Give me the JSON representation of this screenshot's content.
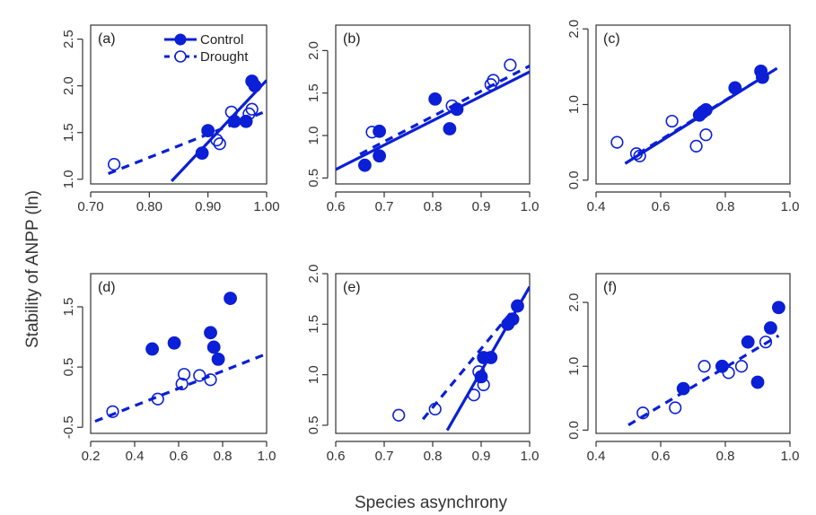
{
  "figure": {
    "ylabel": "Stability of ANPP (ln)",
    "xlabel": "Species asynchrony",
    "colors": {
      "accent": "#0a1fd6"
    }
  },
  "chart_data": [
    {
      "type": "scatter",
      "panel": "(a)",
      "xlim": [
        0.7,
        1.0
      ],
      "ylim": [
        0.95,
        2.65
      ],
      "xticks": [
        "0.70",
        "0.80",
        "0.90",
        "1.00"
      ],
      "xtick_values": [
        0.7,
        0.8,
        0.9,
        1.0
      ],
      "yticks": [
        "1.0",
        "1.5",
        "2.0",
        "2.5"
      ],
      "ytick_values": [
        1.0,
        1.5,
        2.0,
        2.5
      ],
      "legend": {
        "position": "top",
        "entries": [
          "Control",
          "Drought"
        ]
      },
      "series": [
        {
          "name": "Control",
          "marker": "filled",
          "line": "solid",
          "points": [
            [
              0.89,
              1.28
            ],
            [
              0.9,
              1.52
            ],
            [
              0.945,
              1.62
            ],
            [
              0.965,
              1.62
            ],
            [
              0.975,
              2.05
            ],
            [
              0.98,
              2.0
            ]
          ],
          "fit": [
            [
              0.838,
              0.98
            ],
            [
              1.0,
              2.06
            ]
          ]
        },
        {
          "name": "Drought",
          "marker": "open",
          "line": "dashed",
          "points": [
            [
              0.74,
              1.16
            ],
            [
              0.915,
              1.42
            ],
            [
              0.92,
              1.38
            ],
            [
              0.94,
              1.72
            ],
            [
              0.97,
              1.7
            ],
            [
              0.975,
              1.75
            ]
          ],
          "fit": [
            [
              0.73,
              1.06
            ],
            [
              1.0,
              1.73
            ]
          ]
        }
      ]
    },
    {
      "type": "scatter",
      "panel": "(b)",
      "xlim": [
        0.6,
        1.0
      ],
      "ylim": [
        0.43,
        2.3
      ],
      "xticks": [
        "0.6",
        "0.7",
        "0.8",
        "0.9",
        "1.0"
      ],
      "xtick_values": [
        0.6,
        0.7,
        0.8,
        0.9,
        1.0
      ],
      "yticks": [
        "0.5",
        "1.0",
        "1.5",
        "2.0"
      ],
      "ytick_values": [
        0.5,
        1.0,
        1.5,
        2.0
      ],
      "series": [
        {
          "name": "Control",
          "marker": "filled",
          "line": "solid",
          "points": [
            [
              0.66,
              0.65
            ],
            [
              0.69,
              0.76
            ],
            [
              0.69,
              1.05
            ],
            [
              0.805,
              1.43
            ],
            [
              0.835,
              1.08
            ],
            [
              0.85,
              1.31
            ]
          ],
          "fit": [
            [
              0.6,
              0.6
            ],
            [
              1.0,
              1.75
            ]
          ]
        },
        {
          "name": "Drought",
          "marker": "open",
          "line": "dashed",
          "points": [
            [
              0.675,
              1.04
            ],
            [
              0.84,
              1.35
            ],
            [
              0.92,
              1.6
            ],
            [
              0.925,
              1.65
            ],
            [
              0.96,
              1.83
            ]
          ],
          "fit": [
            [
              0.65,
              0.78
            ],
            [
              1.0,
              1.82
            ]
          ]
        }
      ]
    },
    {
      "type": "scatter",
      "panel": "(c)",
      "xlim": [
        0.4,
        1.0
      ],
      "ylim": [
        -0.05,
        2.05
      ],
      "xticks": [
        "0.4",
        "0.6",
        "0.8",
        "1.0"
      ],
      "xtick_values": [
        0.4,
        0.6,
        0.8,
        1.0
      ],
      "yticks": [
        "0.0",
        "1.0",
        "2.0"
      ],
      "ytick_values": [
        0.0,
        1.0,
        2.0
      ],
      "series": [
        {
          "name": "Control",
          "marker": "filled",
          "line": "solid",
          "points": [
            [
              0.72,
              0.86
            ],
            [
              0.73,
              0.9
            ],
            [
              0.74,
              0.93
            ],
            [
              0.83,
              1.22
            ],
            [
              0.91,
              1.44
            ],
            [
              0.915,
              1.36
            ]
          ],
          "fit": [
            [
              0.49,
              0.22
            ],
            [
              0.96,
              1.48
            ]
          ]
        },
        {
          "name": "Drought",
          "marker": "open",
          "line": "dashed",
          "points": [
            [
              0.465,
              0.5
            ],
            [
              0.525,
              0.35
            ],
            [
              0.535,
              0.32
            ],
            [
              0.635,
              0.78
            ],
            [
              0.71,
              0.45
            ],
            [
              0.74,
              0.6
            ]
          ],
          "fit": [
            [
              0.53,
              0.35
            ],
            [
              0.95,
              1.45
            ]
          ]
        }
      ]
    },
    {
      "type": "scatter",
      "panel": "(d)",
      "xlim": [
        0.2,
        1.0
      ],
      "ylim": [
        -0.6,
        2.05
      ],
      "xticks": [
        "0.2",
        "0.4",
        "0.6",
        "0.8",
        "1.0"
      ],
      "xtick_values": [
        0.2,
        0.4,
        0.6,
        0.8,
        1.0
      ],
      "yticks": [
        "-0.5",
        "0.5",
        "1.5"
      ],
      "ytick_values": [
        -0.5,
        0.5,
        1.5
      ],
      "series": [
        {
          "name": "Control",
          "marker": "filled",
          "line": "solid",
          "points": [
            [
              0.48,
              0.8
            ],
            [
              0.58,
              0.9
            ],
            [
              0.745,
              1.07
            ],
            [
              0.76,
              0.83
            ],
            [
              0.78,
              0.63
            ],
            [
              0.835,
              1.64
            ]
          ],
          "fit": []
        },
        {
          "name": "Drought",
          "marker": "open",
          "line": "dashed",
          "points": [
            [
              0.3,
              -0.24
            ],
            [
              0.505,
              -0.03
            ],
            [
              0.615,
              0.22
            ],
            [
              0.625,
              0.38
            ],
            [
              0.695,
              0.36
            ],
            [
              0.745,
              0.29
            ]
          ],
          "fit": [
            [
              0.22,
              -0.4
            ],
            [
              1.0,
              0.72
            ]
          ]
        }
      ]
    },
    {
      "type": "scatter",
      "panel": "(e)",
      "xlim": [
        0.6,
        1.0
      ],
      "ylim": [
        0.42,
        2.0
      ],
      "xticks": [
        "0.6",
        "0.7",
        "0.8",
        "0.9",
        "1.0"
      ],
      "xtick_values": [
        0.6,
        0.7,
        0.8,
        0.9,
        1.0
      ],
      "yticks": [
        "0.5",
        "1.0",
        "1.5",
        "2.0"
      ],
      "ytick_values": [
        0.5,
        1.0,
        1.5,
        2.0
      ],
      "series": [
        {
          "name": "Control",
          "marker": "filled",
          "line": "solid",
          "points": [
            [
              0.9,
              0.98
            ],
            [
              0.905,
              1.17
            ],
            [
              0.92,
              1.17
            ],
            [
              0.955,
              1.5
            ],
            [
              0.965,
              1.55
            ],
            [
              0.975,
              1.68
            ]
          ],
          "fit": [
            [
              0.83,
              0.45
            ],
            [
              1.0,
              1.87
            ]
          ]
        },
        {
          "name": "Drought",
          "marker": "open",
          "line": "dashed",
          "points": [
            [
              0.73,
              0.6
            ],
            [
              0.805,
              0.66
            ],
            [
              0.885,
              0.8
            ],
            [
              0.895,
              1.03
            ],
            [
              0.905,
              0.9
            ]
          ],
          "fit": [
            [
              0.78,
              0.56
            ],
            [
              0.99,
              1.78
            ]
          ]
        }
      ]
    },
    {
      "type": "scatter",
      "panel": "(f)",
      "xlim": [
        0.4,
        1.0
      ],
      "ylim": [
        -0.05,
        2.45
      ],
      "xticks": [
        "0.4",
        "0.6",
        "0.8",
        "1.0"
      ],
      "xtick_values": [
        0.4,
        0.6,
        0.8,
        1.0
      ],
      "yticks": [
        "0.0",
        "1.0",
        "2.0"
      ],
      "ytick_values": [
        0.0,
        1.0,
        2.0
      ],
      "series": [
        {
          "name": "Control",
          "marker": "filled",
          "line": "solid",
          "points": [
            [
              0.67,
              0.65
            ],
            [
              0.79,
              1.0
            ],
            [
              0.87,
              1.38
            ],
            [
              0.9,
              0.75
            ],
            [
              0.94,
              1.6
            ],
            [
              0.965,
              1.92
            ]
          ],
          "fit": []
        },
        {
          "name": "Drought",
          "marker": "open",
          "line": "dashed",
          "points": [
            [
              0.545,
              0.27
            ],
            [
              0.645,
              0.35
            ],
            [
              0.735,
              1.0
            ],
            [
              0.81,
              0.9
            ],
            [
              0.85,
              1.0
            ],
            [
              0.925,
              1.38
            ]
          ],
          "fit": [
            [
              0.5,
              0.08
            ],
            [
              0.965,
              1.48
            ]
          ]
        }
      ]
    }
  ]
}
